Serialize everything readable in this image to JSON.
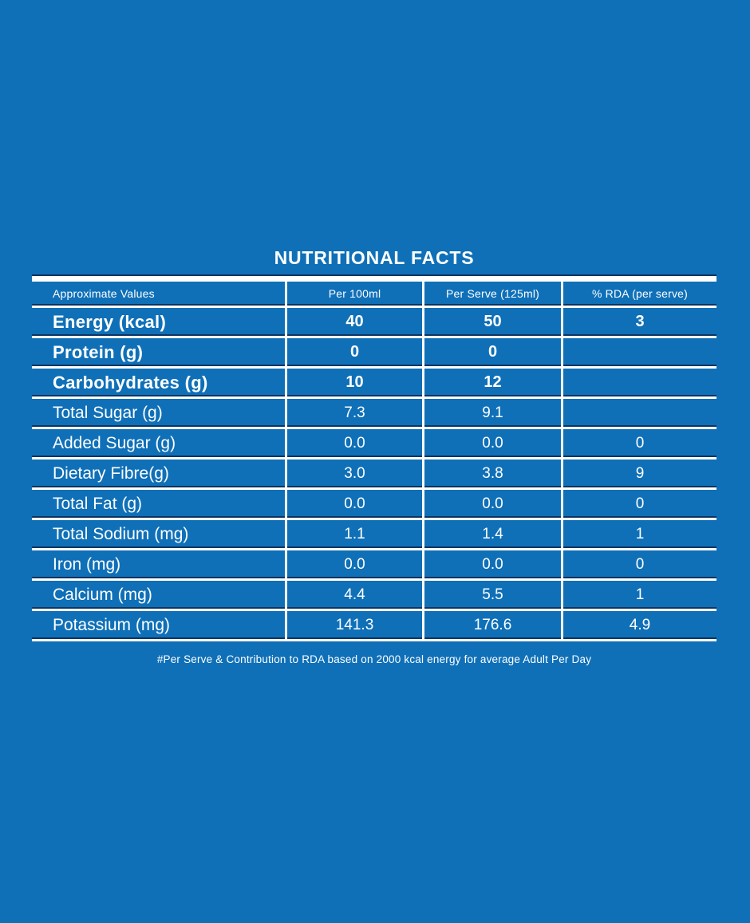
{
  "title": "NUTRITIONAL FACTS",
  "colors": {
    "background": "#0F70B8",
    "text": "#FFFFFF",
    "rule_white": "#FFFFFF",
    "rule_shadow_navy": "#0E3460"
  },
  "table": {
    "headers": [
      "Approximate Values",
      "Per 100ml",
      "Per Serve (125ml)",
      "% RDA (per serve)"
    ],
    "rows": [
      {
        "label": "Energy (kcal)",
        "per_100ml": "40",
        "per_serve": "50",
        "rda": "3"
      },
      {
        "label": "Protein (g)",
        "per_100ml": "0",
        "per_serve": "0",
        "rda": ""
      },
      {
        "label": "Carbohydrates (g)",
        "per_100ml": "10",
        "per_serve": "12",
        "rda": ""
      },
      {
        "label": "Total Sugar (g)",
        "per_100ml": "7.3",
        "per_serve": "9.1",
        "rda": ""
      },
      {
        "label": "Added Sugar (g)",
        "per_100ml": "0.0",
        "per_serve": "0.0",
        "rda": "0"
      },
      {
        "label": "Dietary Fibre(g)",
        "per_100ml": "3.0",
        "per_serve": "3.8",
        "rda": "9"
      },
      {
        "label": "Total Fat (g)",
        "per_100ml": "0.0",
        "per_serve": "0.0",
        "rda": "0"
      },
      {
        "label": "Total Sodium (mg)",
        "per_100ml": "1.1",
        "per_serve": "1.4",
        "rda": "1"
      },
      {
        "label": "Iron (mg)",
        "per_100ml": "0.0",
        "per_serve": "0.0",
        "rda": "0"
      },
      {
        "label": "Calcium (mg)",
        "per_100ml": "4.4",
        "per_serve": "5.5",
        "rda": "1"
      },
      {
        "label": "Potassium (mg)",
        "per_100ml": "141.3",
        "per_serve": "176.6",
        "rda": "4.9"
      }
    ]
  },
  "footnote": "#Per Serve & Contribution to RDA based on 2000 kcal energy for average Adult Per Day"
}
